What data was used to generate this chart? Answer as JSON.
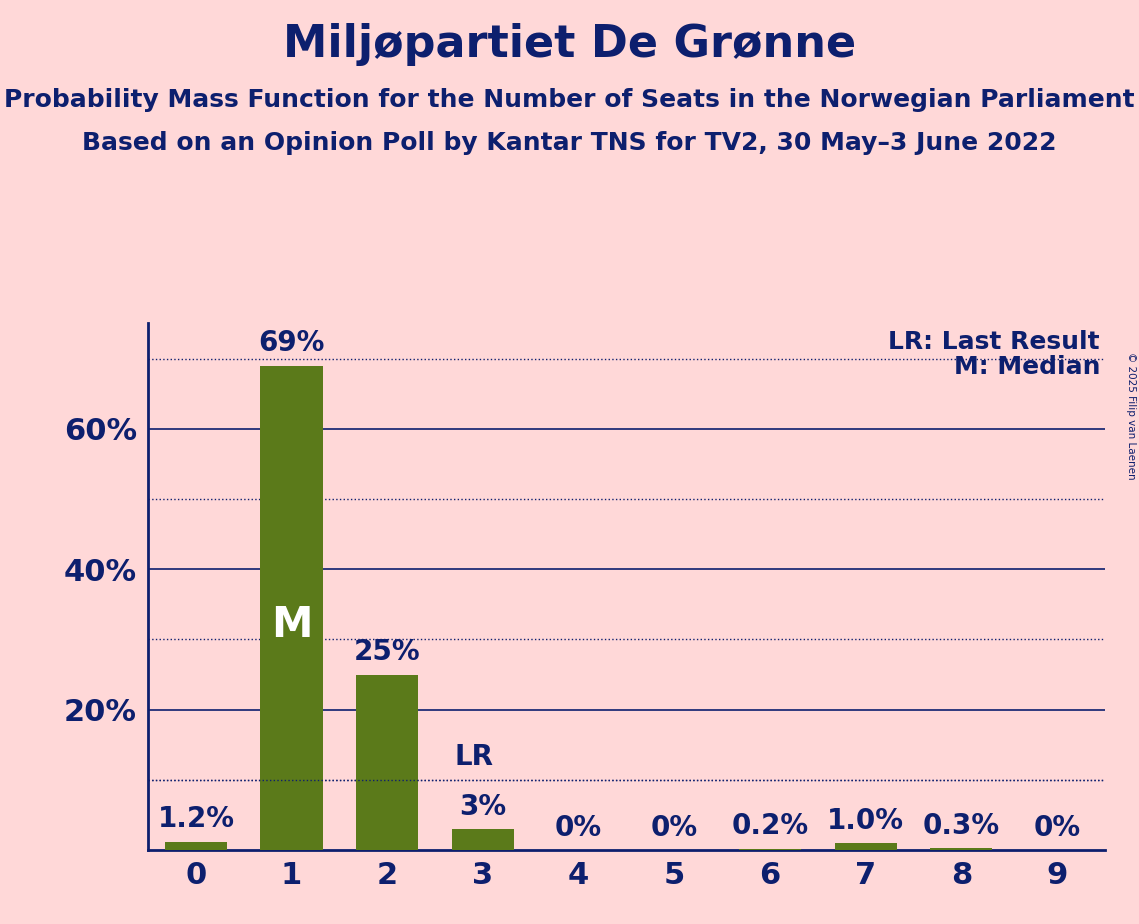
{
  "title": "Miljøpartiet De Grønne",
  "subtitle1": "Probability Mass Function for the Number of Seats in the Norwegian Parliament",
  "subtitle2": "Based on an Opinion Poll by Kantar TNS for TV2, 30 May–3 June 2022",
  "copyright": "© 2025 Filip van Laenen",
  "categories": [
    0,
    1,
    2,
    3,
    4,
    5,
    6,
    7,
    8,
    9
  ],
  "values": [
    1.2,
    69.0,
    25.0,
    3.0,
    0.0,
    0.0,
    0.2,
    1.0,
    0.3,
    0.0
  ],
  "bar_labels": [
    "1.2%",
    "69%",
    "25%",
    "3%",
    "0%",
    "0%",
    "0.2%",
    "1.0%",
    "0.3%",
    "0%"
  ],
  "bar_color": "#5b7a1a",
  "background_color": "#ffd8d8",
  "text_color": "#0d1f6e",
  "median_bar": 1,
  "lr_bar": 3,
  "lr_value": 10.0,
  "ylim": [
    0,
    75
  ],
  "yticks": [
    20,
    40,
    60
  ],
  "ytick_labels": [
    "20%",
    "40%",
    "60%"
  ],
  "solid_grid": [
    20,
    40,
    60
  ],
  "dotted_grid": [
    10,
    30,
    50,
    70
  ],
  "title_fontsize": 32,
  "subtitle_fontsize": 18,
  "label_fontsize": 18,
  "tick_fontsize": 22,
  "annotation_fontsize": 20,
  "median_label": "M",
  "lr_label": "LR",
  "lr_legend": "LR: Last Result",
  "m_legend": "M: Median",
  "median_fontsize": 30
}
